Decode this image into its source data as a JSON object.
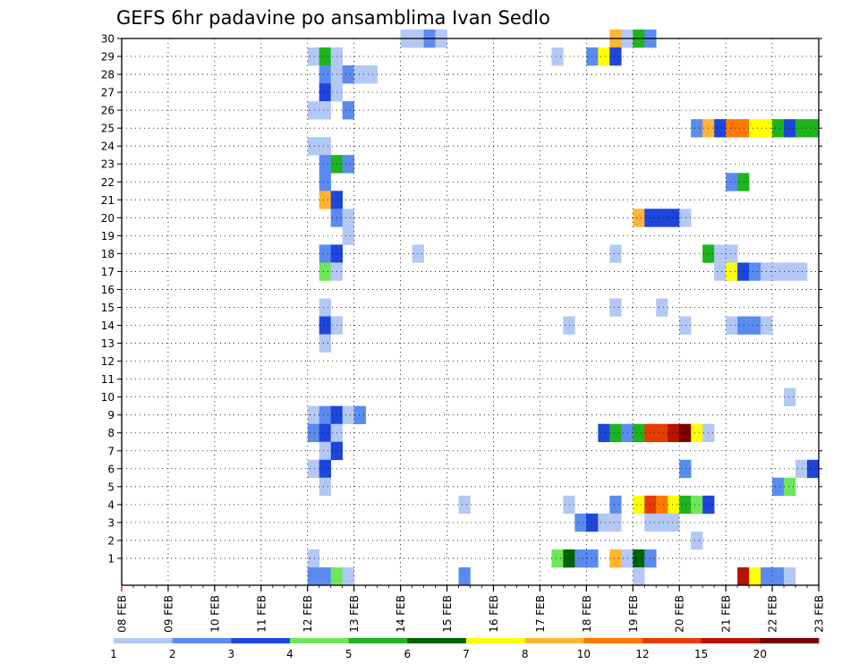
{
  "chart_data": {
    "type": "heatmap",
    "title": "GEFS 6hr padavine po ansamblima Ivan Sedlo",
    "x_tick_labels": [
      "08 FEB",
      "09 FEB",
      "10 FEB",
      "11 FEB",
      "12 FEB",
      "13 FEB",
      "14 FEB",
      "15 FEB",
      "16 FEB",
      "17 FEB",
      "18 FEB",
      "19 FEB",
      "20 FEB",
      "21 FEB",
      "22 FEB",
      "23 FEB"
    ],
    "y_tick_labels": [
      "1",
      "2",
      "3",
      "4",
      "5",
      "6",
      "7",
      "8",
      "9",
      "10",
      "11",
      "12",
      "13",
      "14",
      "15",
      "16",
      "17",
      "18",
      "19",
      "20",
      "21",
      "22",
      "23",
      "24",
      "25",
      "26",
      "27",
      "28",
      "29",
      "30"
    ],
    "y_range": [
      0,
      30
    ],
    "x_step_hours": 6,
    "grid": true,
    "color_scale": {
      "labels": [
        "1",
        "2",
        "3",
        "4",
        "5",
        "6",
        "7",
        "8",
        "10",
        "12",
        "15",
        "20"
      ],
      "colors": [
        "#b4c8f5",
        "#5a8cf0",
        "#1e46dc",
        "#6ee65a",
        "#1eb41e",
        "#006400",
        "#ffff00",
        "#ffb432",
        "#ff7800",
        "#e63c00",
        "#b41400",
        "#780000"
      ]
    },
    "cells": [
      {
        "member": 30,
        "step": 24,
        "level": 1
      },
      {
        "member": 30,
        "step": 25,
        "level": 1
      },
      {
        "member": 30,
        "step": 26,
        "level": 2
      },
      {
        "member": 30,
        "step": 27,
        "level": 1
      },
      {
        "member": 30,
        "step": 42,
        "level": 8
      },
      {
        "member": 30,
        "step": 43,
        "level": 1
      },
      {
        "member": 30,
        "step": 44,
        "level": 5
      },
      {
        "member": 30,
        "step": 45,
        "level": 2
      },
      {
        "member": 29,
        "step": 16,
        "level": 1
      },
      {
        "member": 29,
        "step": 17,
        "level": 5
      },
      {
        "member": 29,
        "step": 18,
        "level": 1
      },
      {
        "member": 29,
        "step": 37,
        "level": 1
      },
      {
        "member": 29,
        "step": 40,
        "level": 2
      },
      {
        "member": 29,
        "step": 41,
        "level": 7
      },
      {
        "member": 29,
        "step": 42,
        "level": 3
      },
      {
        "member": 28,
        "step": 17,
        "level": 2
      },
      {
        "member": 28,
        "step": 18,
        "level": 1
      },
      {
        "member": 28,
        "step": 19,
        "level": 2
      },
      {
        "member": 28,
        "step": 20,
        "level": 1
      },
      {
        "member": 28,
        "step": 21,
        "level": 1
      },
      {
        "member": 27,
        "step": 17,
        "level": 3
      },
      {
        "member": 27,
        "step": 18,
        "level": 1
      },
      {
        "member": 26,
        "step": 16,
        "level": 1
      },
      {
        "member": 26,
        "step": 17,
        "level": 1
      },
      {
        "member": 26,
        "step": 19,
        "level": 2
      },
      {
        "member": 25,
        "step": 49,
        "level": 2
      },
      {
        "member": 25,
        "step": 50,
        "level": 8
      },
      {
        "member": 25,
        "step": 51,
        "level": 3
      },
      {
        "member": 25,
        "step": 52,
        "level": 9
      },
      {
        "member": 25,
        "step": 53,
        "level": 9
      },
      {
        "member": 25,
        "step": 54,
        "level": 7
      },
      {
        "member": 25,
        "step": 55,
        "level": 7
      },
      {
        "member": 25,
        "step": 56,
        "level": 5
      },
      {
        "member": 25,
        "step": 57,
        "level": 3
      },
      {
        "member": 25,
        "step": 58,
        "level": 5
      },
      {
        "member": 25,
        "step": 59,
        "level": 5
      },
      {
        "member": 24,
        "step": 16,
        "level": 1
      },
      {
        "member": 24,
        "step": 17,
        "level": 1
      },
      {
        "member": 23,
        "step": 17,
        "level": 2
      },
      {
        "member": 23,
        "step": 18,
        "level": 5
      },
      {
        "member": 23,
        "step": 19,
        "level": 2
      },
      {
        "member": 22,
        "step": 17,
        "level": 2
      },
      {
        "member": 22,
        "step": 52,
        "level": 2
      },
      {
        "member": 22,
        "step": 53,
        "level": 5
      },
      {
        "member": 21,
        "step": 17,
        "level": 8
      },
      {
        "member": 21,
        "step": 18,
        "level": 3
      },
      {
        "member": 20,
        "step": 18,
        "level": 2
      },
      {
        "member": 20,
        "step": 19,
        "level": 1
      },
      {
        "member": 20,
        "step": 44,
        "level": 8
      },
      {
        "member": 20,
        "step": 45,
        "level": 3
      },
      {
        "member": 20,
        "step": 46,
        "level": 3
      },
      {
        "member": 20,
        "step": 47,
        "level": 3
      },
      {
        "member": 20,
        "step": 48,
        "level": 1
      },
      {
        "member": 19,
        "step": 19,
        "level": 1
      },
      {
        "member": 18,
        "step": 17,
        "level": 2
      },
      {
        "member": 18,
        "step": 18,
        "level": 3
      },
      {
        "member": 18,
        "step": 25,
        "level": 1
      },
      {
        "member": 18,
        "step": 42,
        "level": 1
      },
      {
        "member": 18,
        "step": 50,
        "level": 5
      },
      {
        "member": 18,
        "step": 51,
        "level": 1
      },
      {
        "member": 18,
        "step": 52,
        "level": 1
      },
      {
        "member": 17,
        "step": 17,
        "level": 4
      },
      {
        "member": 17,
        "step": 18,
        "level": 1
      },
      {
        "member": 17,
        "step": 51,
        "level": 1
      },
      {
        "member": 17,
        "step": 52,
        "level": 7
      },
      {
        "member": 17,
        "step": 53,
        "level": 3
      },
      {
        "member": 17,
        "step": 54,
        "level": 2
      },
      {
        "member": 17,
        "step": 55,
        "level": 1
      },
      {
        "member": 17,
        "step": 56,
        "level": 1
      },
      {
        "member": 17,
        "step": 57,
        "level": 1
      },
      {
        "member": 17,
        "step": 58,
        "level": 1
      },
      {
        "member": 15,
        "step": 17,
        "level": 1
      },
      {
        "member": 15,
        "step": 42,
        "level": 1
      },
      {
        "member": 15,
        "step": 46,
        "level": 1
      },
      {
        "member": 14,
        "step": 17,
        "level": 3
      },
      {
        "member": 14,
        "step": 18,
        "level": 1
      },
      {
        "member": 14,
        "step": 38,
        "level": 1
      },
      {
        "member": 14,
        "step": 48,
        "level": 1
      },
      {
        "member": 14,
        "step": 52,
        "level": 1
      },
      {
        "member": 14,
        "step": 53,
        "level": 2
      },
      {
        "member": 14,
        "step": 54,
        "level": 2
      },
      {
        "member": 14,
        "step": 55,
        "level": 1
      },
      {
        "member": 13,
        "step": 17,
        "level": 1
      },
      {
        "member": 10,
        "step": 57,
        "level": 1
      },
      {
        "member": 9,
        "step": 16,
        "level": 1
      },
      {
        "member": 9,
        "step": 17,
        "level": 2
      },
      {
        "member": 9,
        "step": 18,
        "level": 3
      },
      {
        "member": 9,
        "step": 19,
        "level": 1
      },
      {
        "member": 9,
        "step": 20,
        "level": 2
      },
      {
        "member": 8,
        "step": 16,
        "level": 2
      },
      {
        "member": 8,
        "step": 17,
        "level": 3
      },
      {
        "member": 8,
        "step": 18,
        "level": 1
      },
      {
        "member": 8,
        "step": 41,
        "level": 3
      },
      {
        "member": 8,
        "step": 42,
        "level": 5
      },
      {
        "member": 8,
        "step": 43,
        "level": 2
      },
      {
        "member": 8,
        "step": 44,
        "level": 5
      },
      {
        "member": 8,
        "step": 45,
        "level": 10
      },
      {
        "member": 8,
        "step": 46,
        "level": 10
      },
      {
        "member": 8,
        "step": 47,
        "level": 11
      },
      {
        "member": 8,
        "step": 48,
        "level": 12
      },
      {
        "member": 8,
        "step": 49,
        "level": 7
      },
      {
        "member": 8,
        "step": 50,
        "level": 1
      },
      {
        "member": 7,
        "step": 17,
        "level": 1
      },
      {
        "member": 7,
        "step": 18,
        "level": 3
      },
      {
        "member": 6,
        "step": 16,
        "level": 1
      },
      {
        "member": 6,
        "step": 17,
        "level": 3
      },
      {
        "member": 6,
        "step": 48,
        "level": 2
      },
      {
        "member": 6,
        "step": 58,
        "level": 1
      },
      {
        "member": 6,
        "step": 59,
        "level": 3
      },
      {
        "member": 5,
        "step": 17,
        "level": 1
      },
      {
        "member": 5,
        "step": 56,
        "level": 2
      },
      {
        "member": 5,
        "step": 57,
        "level": 4
      },
      {
        "member": 4,
        "step": 29,
        "level": 1
      },
      {
        "member": 4,
        "step": 38,
        "level": 1
      },
      {
        "member": 4,
        "step": 42,
        "level": 2
      },
      {
        "member": 4,
        "step": 44,
        "level": 7
      },
      {
        "member": 4,
        "step": 45,
        "level": 10
      },
      {
        "member": 4,
        "step": 46,
        "level": 9
      },
      {
        "member": 4,
        "step": 47,
        "level": 7
      },
      {
        "member": 4,
        "step": 48,
        "level": 5
      },
      {
        "member": 4,
        "step": 49,
        "level": 4
      },
      {
        "member": 4,
        "step": 50,
        "level": 3
      },
      {
        "member": 3,
        "step": 39,
        "level": 2
      },
      {
        "member": 3,
        "step": 40,
        "level": 3
      },
      {
        "member": 3,
        "step": 41,
        "level": 1
      },
      {
        "member": 3,
        "step": 42,
        "level": 1
      },
      {
        "member": 3,
        "step": 45,
        "level": 1
      },
      {
        "member": 3,
        "step": 46,
        "level": 1
      },
      {
        "member": 3,
        "step": 47,
        "level": 1
      },
      {
        "member": 2,
        "step": 49,
        "level": 1
      },
      {
        "member": 1,
        "step": 16,
        "level": 1
      },
      {
        "member": 1,
        "step": 37,
        "level": 4
      },
      {
        "member": 1,
        "step": 38,
        "level": 6
      },
      {
        "member": 1,
        "step": 39,
        "level": 2
      },
      {
        "member": 1,
        "step": 40,
        "level": 2
      },
      {
        "member": 1,
        "step": 42,
        "level": 8
      },
      {
        "member": 1,
        "step": 43,
        "level": 1
      },
      {
        "member": 1,
        "step": 44,
        "level": 6
      },
      {
        "member": 1,
        "step": 45,
        "level": 2
      },
      {
        "member": 0,
        "step": 16,
        "level": 2
      },
      {
        "member": 0,
        "step": 17,
        "level": 2
      },
      {
        "member": 0,
        "step": 18,
        "level": 4
      },
      {
        "member": 0,
        "step": 19,
        "level": 1
      },
      {
        "member": 0,
        "step": 29,
        "level": 2
      },
      {
        "member": 0,
        "step": 44,
        "level": 1
      },
      {
        "member": 0,
        "step": 53,
        "level": 11
      },
      {
        "member": 0,
        "step": 54,
        "level": 7
      },
      {
        "member": 0,
        "step": 55,
        "level": 2
      },
      {
        "member": 0,
        "step": 56,
        "level": 2
      },
      {
        "member": 0,
        "step": 57,
        "level": 1
      }
    ]
  }
}
